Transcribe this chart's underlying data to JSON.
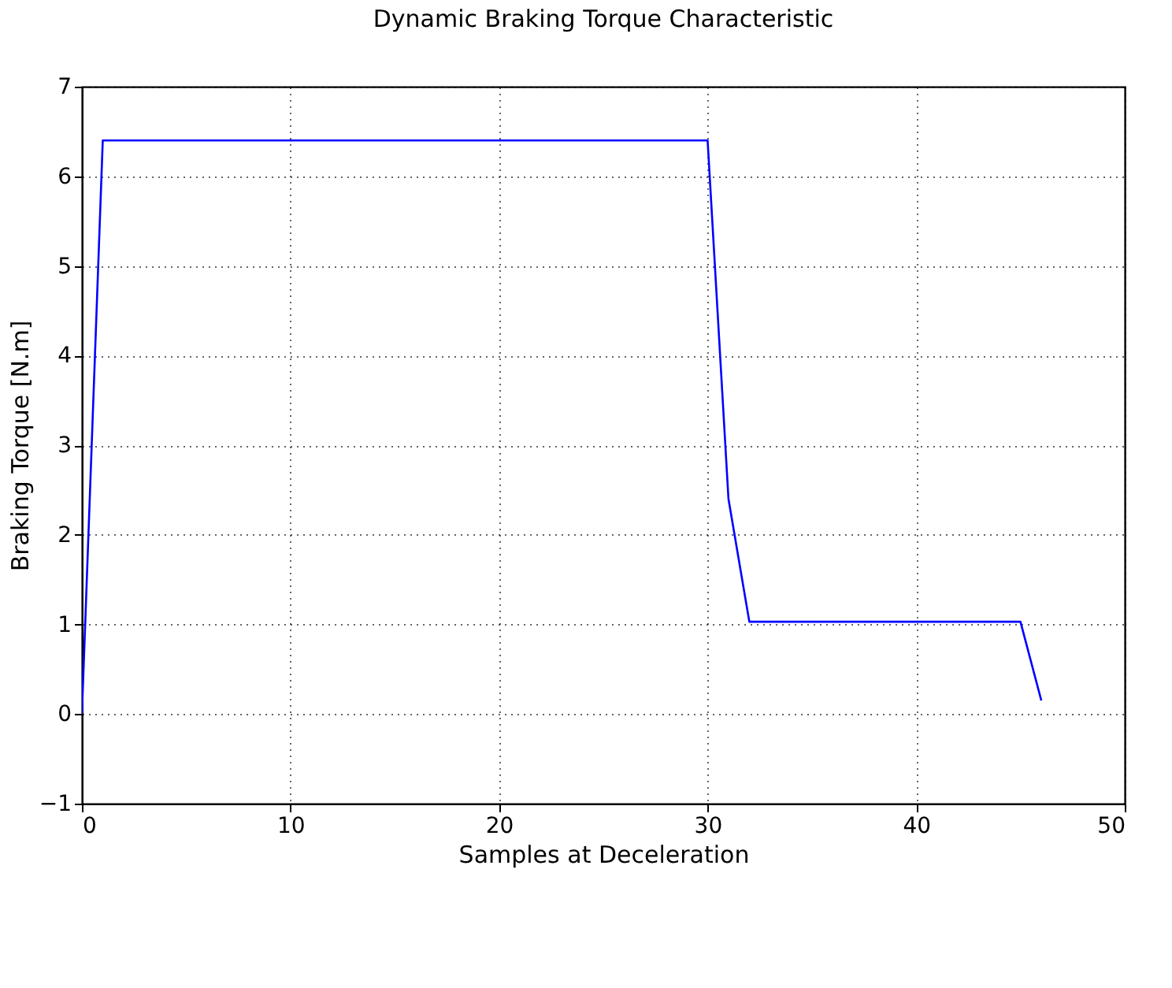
{
  "chart_data": {
    "type": "line",
    "title": "Dynamic Braking Torque Characteristic",
    "xlabel": "Samples at Deceleration",
    "ylabel": "Braking Torque [N.m]",
    "x": [
      0,
      1,
      30,
      31,
      32,
      45,
      46
    ],
    "series": [
      {
        "color": "#0000ff",
        "values": [
          0,
          6.4,
          6.4,
          2.4,
          1.03,
          1.03,
          0.15
        ]
      }
    ],
    "xlim": [
      0,
      50
    ],
    "xticks": [
      0,
      10,
      20,
      30,
      40,
      50
    ],
    "ylim": [
      -1,
      7
    ],
    "yticks": [
      {
        "value": -1,
        "label": "−1"
      },
      0,
      1,
      2,
      3,
      4,
      5,
      6,
      7
    ],
    "grid": true,
    "marker": "none",
    "line_style": "solid"
  }
}
